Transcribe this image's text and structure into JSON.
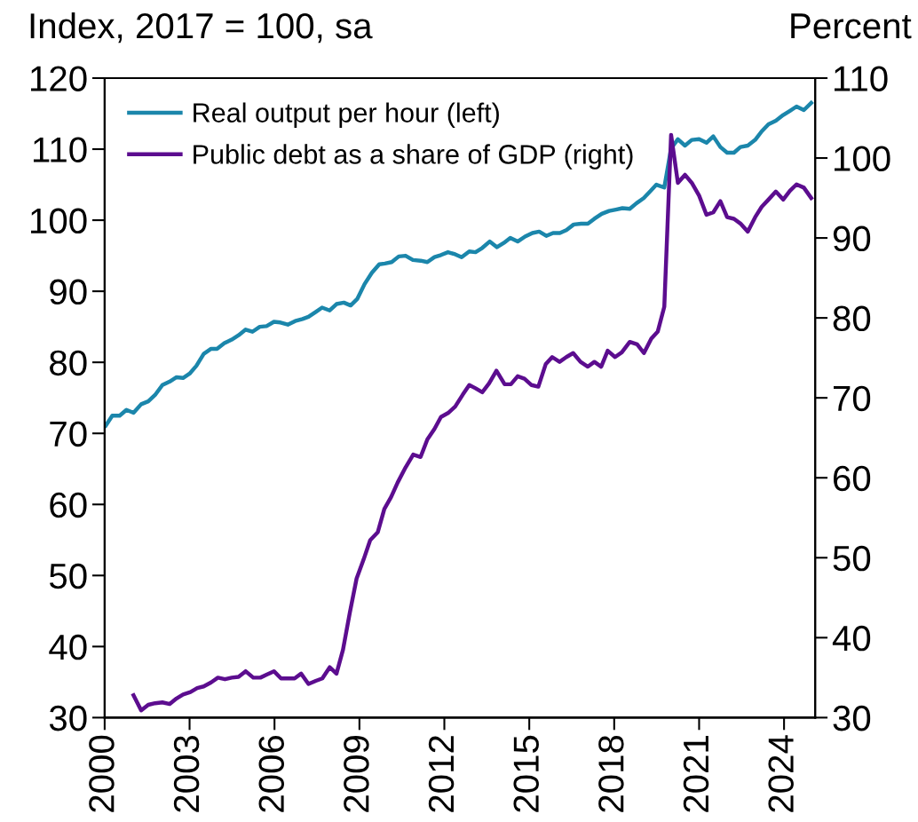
{
  "chart_data": {
    "type": "line",
    "ylabel": "Index, 2017 = 100, sa",
    "y2label": "Percent",
    "xlim": [
      2000,
      2025.1
    ],
    "xticks": [
      2000,
      2003,
      2006,
      2009,
      2012,
      2015,
      2018,
      2021,
      2024
    ],
    "ylim": [
      30,
      120
    ],
    "yticks": [
      30,
      40,
      50,
      60,
      70,
      80,
      90,
      100,
      110,
      120
    ],
    "y2lim": [
      30,
      110
    ],
    "y2ticks": [
      30,
      40,
      50,
      60,
      70,
      80,
      90,
      100,
      110
    ],
    "grid": false,
    "legend": "top left",
    "marker": "none",
    "line_style": "solid",
    "series": [
      {
        "name": "Real output per hour (left)",
        "color": "#1b86ab",
        "axis": "y",
        "x": [
          2000.04,
          2000.27,
          2000.53,
          2000.77,
          2001.02,
          2001.29,
          2001.54,
          2001.78,
          2002.04,
          2002.3,
          2002.54,
          2002.77,
          2003.0,
          2003.24,
          2003.5,
          2003.76,
          2003.97,
          2004.23,
          2004.49,
          2004.73,
          2004.98,
          2005.22,
          2005.48,
          2005.72,
          2005.98,
          2006.21,
          2006.47,
          2006.73,
          2006.99,
          2007.2,
          2007.46,
          2007.68,
          2007.95,
          2008.19,
          2008.45,
          2008.69,
          2008.92,
          2009.18,
          2009.44,
          2009.7,
          2009.9,
          2010.14,
          2010.39,
          2010.63,
          2010.89,
          2011.16,
          2011.4,
          2011.65,
          2011.88,
          2012.13,
          2012.38,
          2012.61,
          2012.88,
          2013.1,
          2013.34,
          2013.6,
          2013.86,
          2014.1,
          2014.33,
          2014.59,
          2014.85,
          2015.11,
          2015.35,
          2015.6,
          2015.84,
          2016.08,
          2016.31,
          2016.57,
          2016.83,
          2017.07,
          2017.3,
          2017.56,
          2017.82,
          2018.06,
          2018.29,
          2018.55,
          2018.79,
          2019.04,
          2019.28,
          2019.49,
          2019.77,
          2020.01,
          2020.25,
          2020.5,
          2020.74,
          2021.0,
          2021.26,
          2021.5,
          2021.75,
          2021.99,
          2022.23,
          2022.46,
          2022.72,
          2022.98,
          2023.21,
          2023.45,
          2023.71,
          2023.97,
          2024.21,
          2024.44,
          2024.7,
          2024.96
        ],
        "values": [
          71.1,
          72.5,
          72.5,
          73.3,
          72.9,
          74.1,
          74.5,
          75.4,
          76.8,
          77.3,
          77.9,
          77.8,
          78.4,
          79.5,
          81.2,
          81.9,
          81.9,
          82.7,
          83.2,
          83.8,
          84.6,
          84.3,
          85.0,
          85.1,
          85.7,
          85.6,
          85.3,
          85.8,
          86.1,
          86.4,
          87.1,
          87.7,
          87.3,
          88.2,
          88.4,
          88.0,
          88.9,
          91.0,
          92.6,
          93.8,
          93.9,
          94.1,
          94.9,
          95.0,
          94.4,
          94.3,
          94.1,
          94.8,
          95.1,
          95.5,
          95.2,
          94.8,
          95.6,
          95.5,
          96.1,
          97.0,
          96.2,
          96.8,
          97.5,
          97.0,
          97.7,
          98.2,
          98.4,
          97.8,
          98.2,
          98.2,
          98.6,
          99.4,
          99.5,
          99.5,
          100.2,
          100.9,
          101.3,
          101.5,
          101.7,
          101.6,
          102.4,
          103.1,
          104.1,
          105.0,
          104.6,
          110.1,
          111.4,
          110.5,
          111.3,
          111.4,
          110.9,
          111.8,
          110.3,
          109.5,
          109.5,
          110.3,
          110.5,
          111.3,
          112.5,
          113.5,
          114.0,
          114.8,
          115.4,
          116.0,
          115.5,
          116.5
        ]
      },
      {
        "name": "Public debt as a share of GDP (right)",
        "color": "#5c0d8f",
        "axis": "y2",
        "x": [
          2001.02,
          2001.29,
          2001.54,
          2001.78,
          2002.04,
          2002.3,
          2002.54,
          2002.77,
          2003.03,
          2003.27,
          2003.5,
          2003.76,
          2004.0,
          2004.25,
          2004.49,
          2004.73,
          2004.98,
          2005.25,
          2005.5,
          2005.74,
          2005.98,
          2006.23,
          2006.47,
          2006.71,
          2006.94,
          2007.2,
          2007.46,
          2007.69,
          2007.95,
          2008.19,
          2008.42,
          2008.66,
          2008.9,
          2009.15,
          2009.38,
          2009.65,
          2009.88,
          2010.12,
          2010.35,
          2010.63,
          2010.9,
          2011.16,
          2011.4,
          2011.65,
          2011.88,
          2012.13,
          2012.38,
          2012.65,
          2012.88,
          2013.1,
          2013.34,
          2013.58,
          2013.84,
          2014.13,
          2014.35,
          2014.59,
          2014.83,
          2015.08,
          2015.32,
          2015.58,
          2015.81,
          2016.07,
          2016.31,
          2016.55,
          2016.81,
          2017.07,
          2017.3,
          2017.54,
          2017.77,
          2018.03,
          2018.27,
          2018.55,
          2018.81,
          2019.05,
          2019.31,
          2019.54,
          2019.77,
          2020.01,
          2020.25,
          2020.5,
          2020.74,
          2021.0,
          2021.26,
          2021.5,
          2021.75,
          2021.99,
          2022.23,
          2022.46,
          2022.72,
          2022.98,
          2023.21,
          2023.45,
          2023.71,
          2023.97,
          2024.21,
          2024.44,
          2024.7,
          2024.96
        ],
        "values": [
          32.8,
          30.9,
          31.6,
          31.8,
          31.9,
          31.7,
          32.4,
          32.9,
          33.2,
          33.7,
          33.9,
          34.4,
          35.0,
          34.8,
          35.0,
          35.1,
          35.8,
          35.0,
          35.0,
          35.4,
          35.8,
          34.9,
          34.9,
          34.9,
          35.5,
          34.2,
          34.6,
          34.9,
          36.3,
          35.5,
          38.5,
          43.1,
          47.4,
          49.8,
          52.2,
          53.2,
          56.1,
          57.6,
          59.4,
          61.3,
          62.9,
          62.6,
          64.8,
          66.1,
          67.6,
          68.1,
          68.9,
          70.4,
          71.6,
          71.2,
          70.7,
          71.8,
          73.4,
          71.7,
          71.7,
          72.7,
          72.4,
          71.6,
          71.4,
          74.2,
          75.1,
          74.5,
          75.1,
          75.6,
          74.5,
          73.9,
          74.5,
          73.9,
          75.9,
          75.1,
          75.7,
          77.0,
          76.7,
          75.6,
          77.4,
          78.3,
          81.4,
          102.9,
          96.9,
          97.9,
          96.9,
          95.3,
          92.9,
          93.2,
          94.6,
          92.6,
          92.4,
          91.8,
          90.8,
          92.6,
          93.9,
          94.8,
          95.8,
          94.8,
          95.9,
          96.7,
          96.3,
          95.0
        ]
      }
    ]
  }
}
